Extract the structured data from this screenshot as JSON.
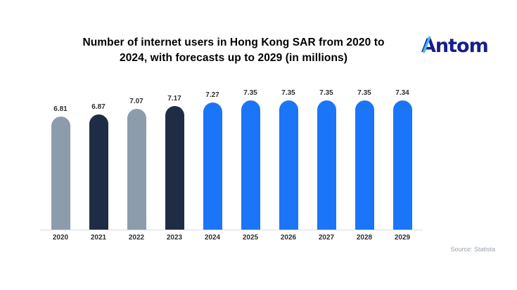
{
  "header": {
    "line1": "Number of internet users in Hong Kong SAR from 2020 to",
    "line2": "2024, with forecasts up to 2029 (in millions)"
  },
  "logo": {
    "text": "Antom",
    "color": "#171c8f",
    "accent": "#43b7ee"
  },
  "source": "Source: Statista",
  "chart_data": {
    "type": "bar",
    "title": "Number of internet users in Hong Kong SAR from 2020 to 2024, with forecasts up to 2029 (in millions)",
    "categories": [
      "2020",
      "2021",
      "2022",
      "2023",
      "2024",
      "2025",
      "2026",
      "2027",
      "2028",
      "2029"
    ],
    "values": [
      6.81,
      6.87,
      7.07,
      7.17,
      7.27,
      7.35,
      7.35,
      7.35,
      7.35,
      7.34
    ],
    "bar_colors": [
      "#8d9cab",
      "#1f2c45",
      "#8d9cab",
      "#1f2c45",
      "#1b75f8",
      "#1b75f8",
      "#1b75f8",
      "#1b75f8",
      "#1b75f8",
      "#1b75f8"
    ],
    "palette": {
      "historical_gray": "#8d9cab",
      "historical_navy": "#1f2c45",
      "forecast_blue": "#1b75f8",
      "baseline_line": "#d7dade",
      "label_text": "#2f2f2f"
    },
    "xlabel": "",
    "ylabel": "",
    "data_labels_visible": true,
    "y_axis_visible": false,
    "grid": false,
    "legend": false
  }
}
